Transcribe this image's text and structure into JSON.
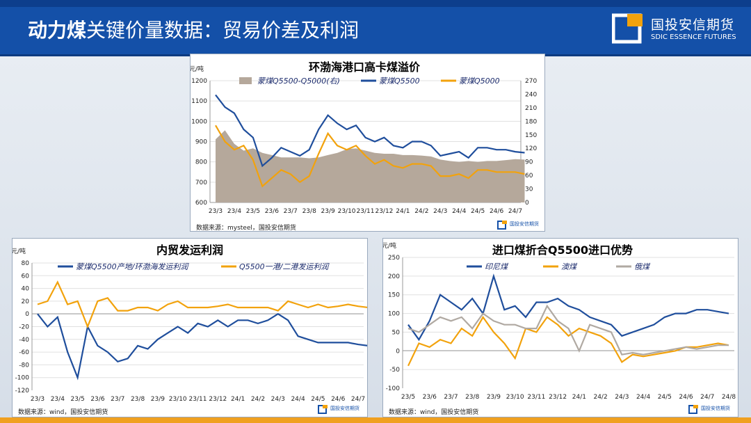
{
  "header": {
    "title_bold": "动力煤",
    "title_rest": "关键价量数据：贸易价差及利润",
    "logo_cn": "国投安信期货",
    "logo_en": "SDIC ESSENCE FUTURES"
  },
  "colors": {
    "navy": "#1f4e9c",
    "orange": "#f2a20c",
    "tan": "#b5a89b",
    "gray": "#b0a9a2"
  },
  "chart_data": [
    {
      "type": "line",
      "title": "环渤海港口高卡煤溢价",
      "ylabel": "元/吨",
      "ylim": [
        600,
        1200
      ],
      "yticks": [
        "1200",
        "1100",
        "1000",
        "900",
        "800",
        "700",
        "600"
      ],
      "y2lim": [
        0,
        270
      ],
      "y2ticks": [
        "270",
        "240",
        "210",
        "180",
        "150",
        "120",
        "90",
        "60",
        "30",
        "0"
      ],
      "xticks": [
        "23/3",
        "23/4",
        "23/5",
        "23/6",
        "23/7",
        "23/8",
        "23/9",
        "23/10",
        "23/11",
        "23/12",
        "24/1",
        "24/2",
        "24/3",
        "24/4",
        "24/5",
        "24/6",
        "24/7"
      ],
      "source": "数据来源：mysteel，国投安信期货",
      "legend": [
        "蒙煤Q5500-Q5000(右)",
        "蒙煤Q5500",
        "蒙煤Q5000"
      ],
      "series": [
        {
          "name": "蒙煤Q5500-Q5000(右)",
          "kind": "area",
          "axis": "right",
          "x": [
            0,
            0.5,
            1,
            1.5,
            2,
            2.5,
            3,
            3.5,
            4,
            4.5,
            5,
            5.5,
            6,
            6.5,
            7,
            7.5,
            8,
            8.5,
            9,
            9.5,
            10,
            10.5,
            11,
            11.5,
            12,
            12.5,
            13,
            13.5,
            14,
            14.5,
            15,
            15.5,
            16,
            16.5
          ],
          "values": [
            140,
            160,
            130,
            115,
            120,
            110,
            105,
            100,
            100,
            100,
            98,
            100,
            105,
            110,
            118,
            120,
            115,
            110,
            108,
            108,
            105,
            105,
            104,
            102,
            95,
            92,
            90,
            92,
            90,
            92,
            92,
            94,
            96,
            95
          ]
        },
        {
          "name": "蒙煤Q5500",
          "kind": "line",
          "axis": "left",
          "x": [
            0,
            0.5,
            1,
            1.5,
            2,
            2.5,
            3,
            3.5,
            4,
            4.5,
            5,
            5.5,
            6,
            6.5,
            7,
            7.5,
            8,
            8.5,
            9,
            9.5,
            10,
            10.5,
            11,
            11.5,
            12,
            12.5,
            13,
            13.5,
            14,
            14.5,
            15,
            15.5,
            16,
            16.5
          ],
          "values": [
            1130,
            1070,
            1040,
            960,
            920,
            780,
            820,
            870,
            850,
            830,
            860,
            960,
            1030,
            990,
            960,
            980,
            920,
            900,
            920,
            880,
            870,
            900,
            900,
            880,
            830,
            840,
            850,
            820,
            870,
            870,
            860,
            860,
            850,
            845
          ]
        },
        {
          "name": "蒙煤Q5000",
          "kind": "line",
          "axis": "left",
          "x": [
            0,
            0.5,
            1,
            1.5,
            2,
            2.5,
            3,
            3.5,
            4,
            4.5,
            5,
            5.5,
            6,
            6.5,
            7,
            7.5,
            8,
            8.5,
            9,
            9.5,
            10,
            10.5,
            11,
            11.5,
            12,
            12.5,
            13,
            13.5,
            14,
            14.5,
            15,
            15.5,
            16,
            16.5
          ],
          "values": [
            980,
            900,
            860,
            880,
            810,
            680,
            720,
            760,
            740,
            700,
            730,
            840,
            940,
            880,
            860,
            880,
            830,
            790,
            810,
            780,
            770,
            790,
            790,
            780,
            730,
            730,
            740,
            720,
            760,
            760,
            750,
            750,
            750,
            740
          ]
        }
      ]
    },
    {
      "type": "line",
      "title": "内贸发运利润",
      "ylabel": "元/吨",
      "ylim": [
        -120,
        80
      ],
      "yticks": [
        "80",
        "60",
        "40",
        "20",
        "0",
        "-20",
        "-40",
        "-60",
        "-80",
        "-100",
        "-120"
      ],
      "xticks": [
        "23/3",
        "23/4",
        "23/5",
        "23/6",
        "23/7",
        "23/8",
        "23/9",
        "23/10",
        "23/11",
        "23/12",
        "24/1",
        "24/2",
        "24/3",
        "24/4",
        "24/5",
        "24/6",
        "24/7"
      ],
      "source": "数据来源：wind，国投安信期货",
      "legend": [
        "蒙煤Q5500产地/环渤海发运利润",
        "Q5500一港/二港发运利润"
      ],
      "series": [
        {
          "name": "蒙煤Q5500产地/环渤海发运利润",
          "x": [
            0,
            0.5,
            1,
            1.5,
            2,
            2.5,
            3,
            3.5,
            4,
            4.5,
            5,
            5.5,
            6,
            6.5,
            7,
            7.5,
            8,
            8.5,
            9,
            9.5,
            10,
            10.5,
            11,
            11.5,
            12,
            12.5,
            13,
            13.5,
            14,
            14.5,
            15,
            15.5,
            16,
            16.5
          ],
          "values": [
            0,
            -20,
            -5,
            -60,
            -100,
            -20,
            -50,
            -60,
            -75,
            -70,
            -50,
            -55,
            -40,
            -30,
            -20,
            -30,
            -15,
            -20,
            -10,
            -20,
            -10,
            -10,
            -15,
            -10,
            0,
            -10,
            -35,
            -40,
            -45,
            -45,
            -45,
            -45,
            -48,
            -50
          ]
        },
        {
          "name": "Q5500一港/二港发运利润",
          "x": [
            0,
            0.5,
            1,
            1.5,
            2,
            2.5,
            3,
            3.5,
            4,
            4.5,
            5,
            5.5,
            6,
            6.5,
            7,
            7.5,
            8,
            8.5,
            9,
            9.5,
            10,
            10.5,
            11,
            11.5,
            12,
            12.5,
            13,
            13.5,
            14,
            14.5,
            15,
            15.5,
            16,
            16.5
          ],
          "values": [
            15,
            20,
            50,
            15,
            20,
            -20,
            20,
            25,
            5,
            5,
            10,
            10,
            5,
            15,
            20,
            10,
            10,
            10,
            12,
            15,
            10,
            10,
            10,
            10,
            5,
            20,
            15,
            10,
            15,
            10,
            12,
            15,
            12,
            10
          ]
        }
      ]
    },
    {
      "type": "line",
      "title": "进口煤折合Q5500进口优势",
      "ylabel": "元/吨",
      "ylim": [
        -100,
        250
      ],
      "yticks": [
        "250",
        "200",
        "150",
        "100",
        "50",
        "0",
        "-50",
        "-100"
      ],
      "xticks": [
        "23/5",
        "23/6",
        "23/7",
        "23/8",
        "23/9",
        "23/10",
        "23/11",
        "23/12",
        "24/1",
        "24/2",
        "24/3",
        "24/4",
        "24/5",
        "24/6",
        "24/7",
        "24/8"
      ],
      "source": "数据来源：wind，国投安信期货",
      "legend": [
        "印尼煤",
        "澳煤",
        "俄煤"
      ],
      "series": [
        {
          "name": "印尼煤",
          "x": [
            0,
            0.5,
            1,
            1.5,
            2,
            2.5,
            3,
            3.5,
            4,
            4.5,
            5,
            5.5,
            6,
            6.5,
            7,
            7.5,
            8,
            8.5,
            9,
            9.5,
            10,
            10.5,
            11,
            11.5,
            12,
            12.5,
            13,
            13.5,
            14,
            14.5,
            15
          ],
          "values": [
            70,
            30,
            80,
            150,
            130,
            110,
            140,
            100,
            200,
            110,
            120,
            90,
            130,
            130,
            140,
            120,
            110,
            90,
            80,
            70,
            40,
            50,
            60,
            70,
            90,
            100,
            100,
            110,
            110,
            105,
            100
          ]
        },
        {
          "name": "澳煤",
          "x": [
            0,
            0.5,
            1,
            1.5,
            2,
            2.5,
            3,
            3.5,
            4,
            4.5,
            5,
            5.5,
            6,
            6.5,
            7,
            7.5,
            8,
            8.5,
            9,
            9.5,
            10,
            10.5,
            11,
            11.5,
            12,
            12.5,
            13,
            13.5,
            14,
            14.5,
            15
          ],
          "values": [
            -40,
            20,
            10,
            30,
            20,
            60,
            40,
            90,
            50,
            20,
            -20,
            60,
            50,
            90,
            70,
            40,
            60,
            50,
            40,
            20,
            -30,
            -10,
            -15,
            -10,
            -5,
            0,
            10,
            10,
            15,
            20,
            15
          ]
        },
        {
          "name": "俄煤",
          "x": [
            0,
            0.5,
            1,
            1.5,
            2,
            2.5,
            3,
            3.5,
            4,
            4.5,
            5,
            5.5,
            6,
            6.5,
            7,
            7.5,
            8,
            8.5,
            9,
            9.5,
            10,
            10.5,
            11,
            11.5,
            12,
            12.5,
            13,
            13.5,
            14,
            14.5,
            15
          ],
          "values": [
            60,
            50,
            70,
            90,
            80,
            90,
            60,
            100,
            80,
            70,
            70,
            60,
            60,
            120,
            80,
            60,
            0,
            70,
            60,
            50,
            -10,
            -5,
            -10,
            -5,
            0,
            5,
            10,
            5,
            10,
            15,
            15
          ]
        }
      ]
    }
  ]
}
